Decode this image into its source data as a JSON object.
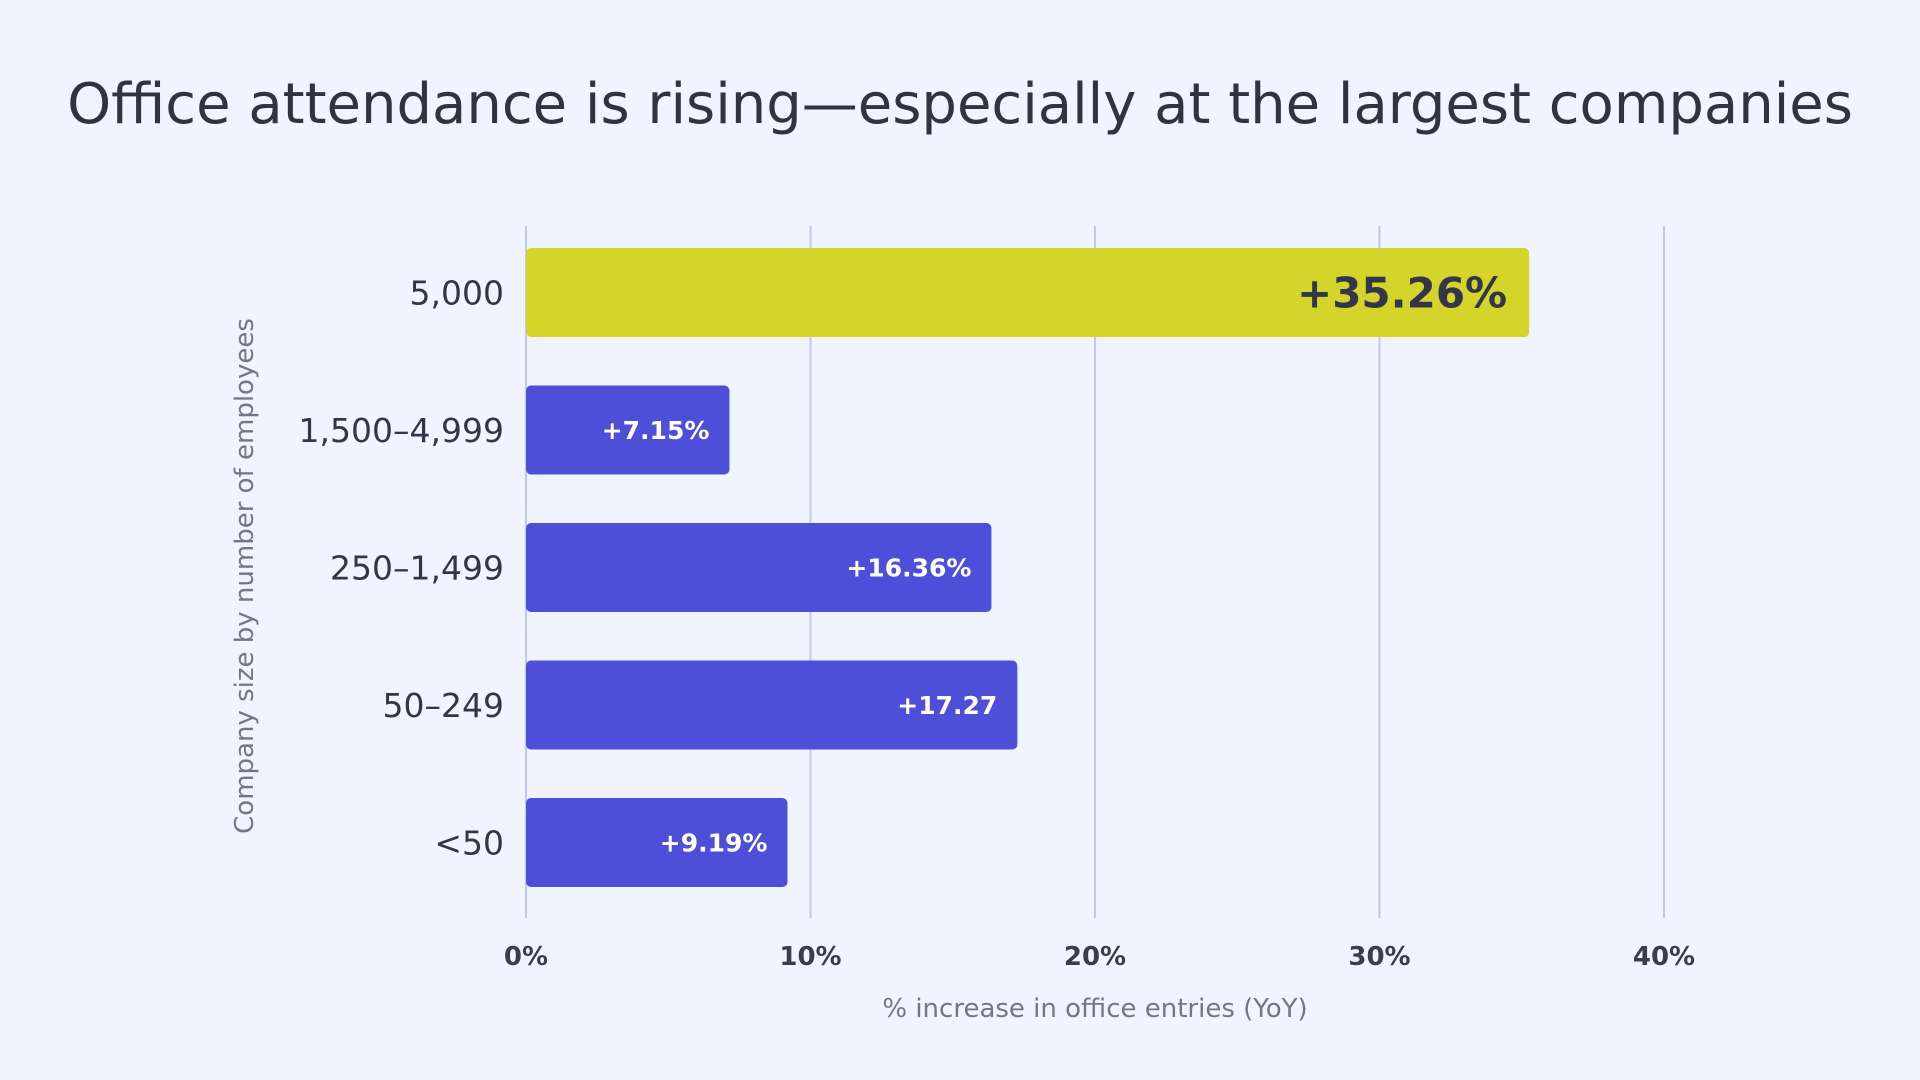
{
  "title": "Office attendance is rising—especially at the largest companies",
  "chart_data": {
    "type": "bar",
    "orientation": "horizontal",
    "title": "Office attendance is rising—especially at the largest companies",
    "xlabel": "% increase in office entries (YoY)",
    "ylabel": "Company size by number of employees",
    "xlim": [
      0,
      40
    ],
    "xticks": [
      "0%",
      "10%",
      "20%",
      "30%",
      "40%"
    ],
    "grid": "vertical",
    "categories": [
      "5,000",
      "1,500–4,999",
      "250–1,499",
      "50–249",
      "<50"
    ],
    "values": [
      35.26,
      7.15,
      16.36,
      17.27,
      9.19
    ],
    "data_labels": [
      "+35.26%",
      "+7.15%",
      "+16.36%",
      "+17.27",
      "+9.19%"
    ],
    "highlight_index": 0,
    "colors": {
      "highlight": "#d4d42a",
      "bar": "#4e4fd9",
      "grid": "#bcc7f2",
      "highlight_label": "#33364a",
      "bar_label": "#ffffff"
    }
  }
}
